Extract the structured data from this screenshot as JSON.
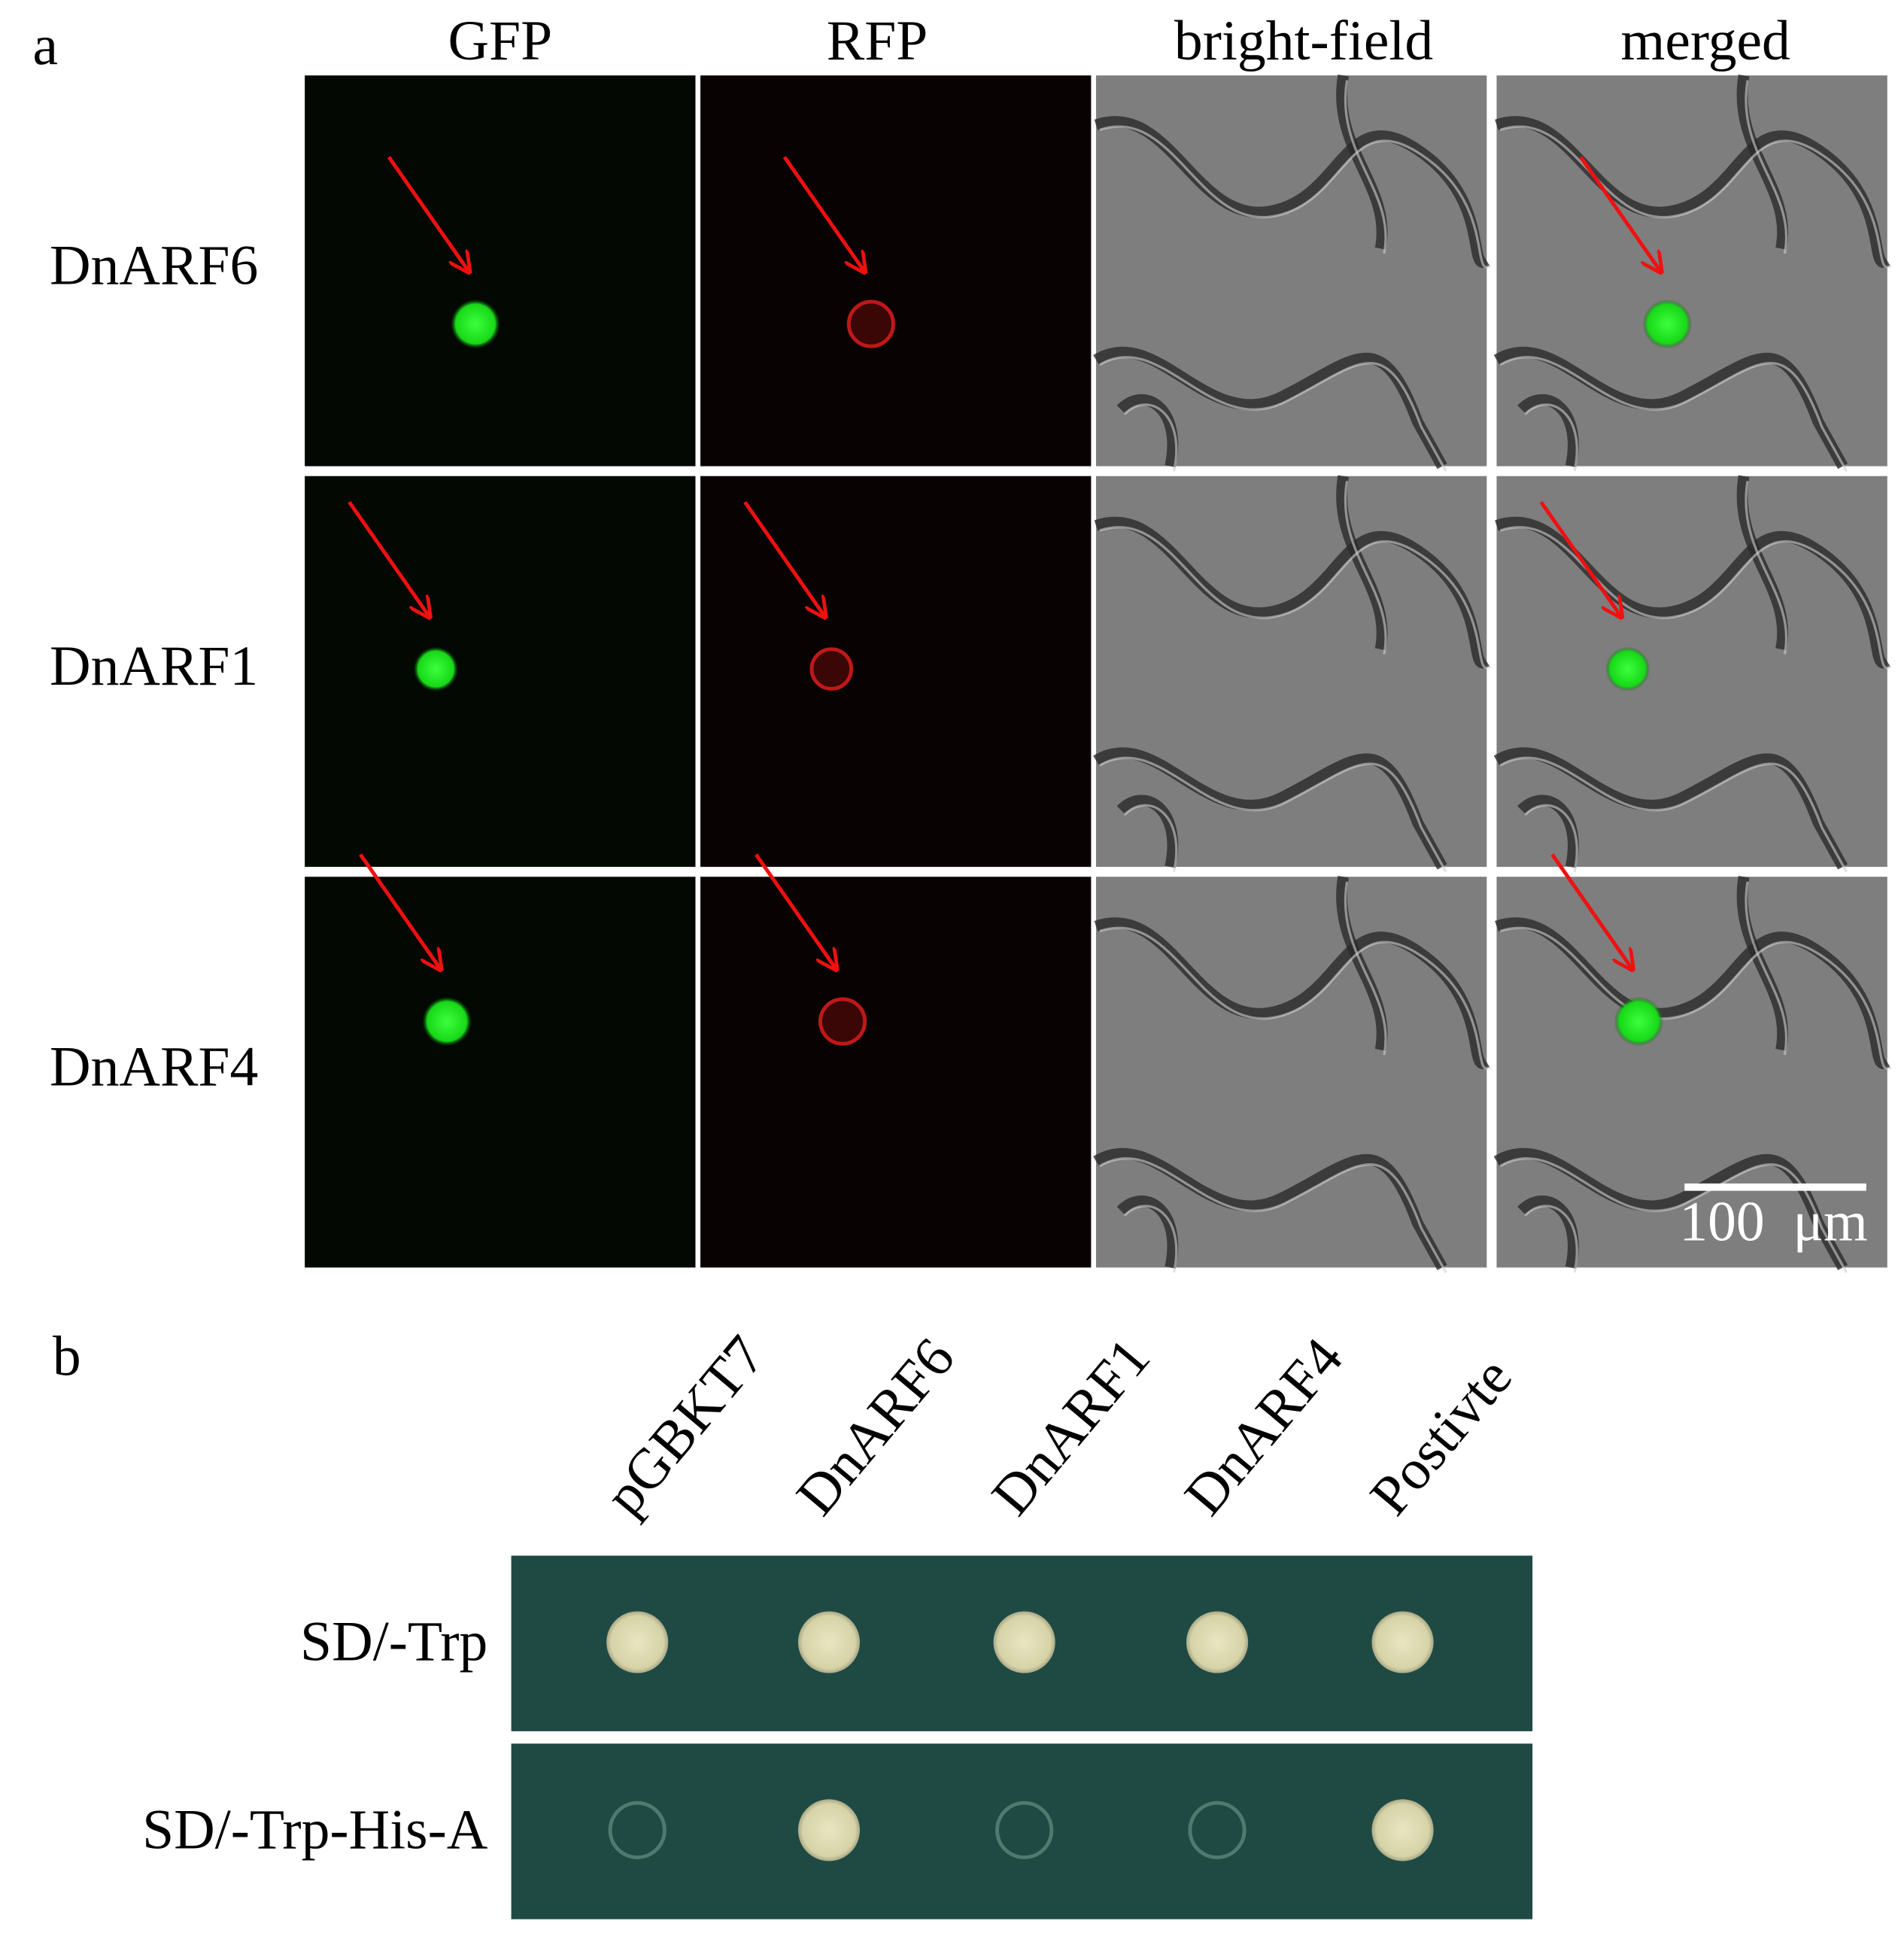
{
  "panel_a": {
    "label": "a",
    "columns": [
      "GFP",
      "RFP",
      "bright-field",
      "merged"
    ],
    "rows": [
      "DnARF6",
      "DnARF1",
      "DnARF4"
    ],
    "scale_bar": "100  μm"
  },
  "panel_b": {
    "label": "b",
    "columns": [
      "pGBKT7",
      "DnARF6",
      "DnARF1",
      "DnARF4",
      "Postivte"
    ],
    "rows": [
      "SD/-Trp",
      "SD/-Trp-His-A"
    ]
  }
}
